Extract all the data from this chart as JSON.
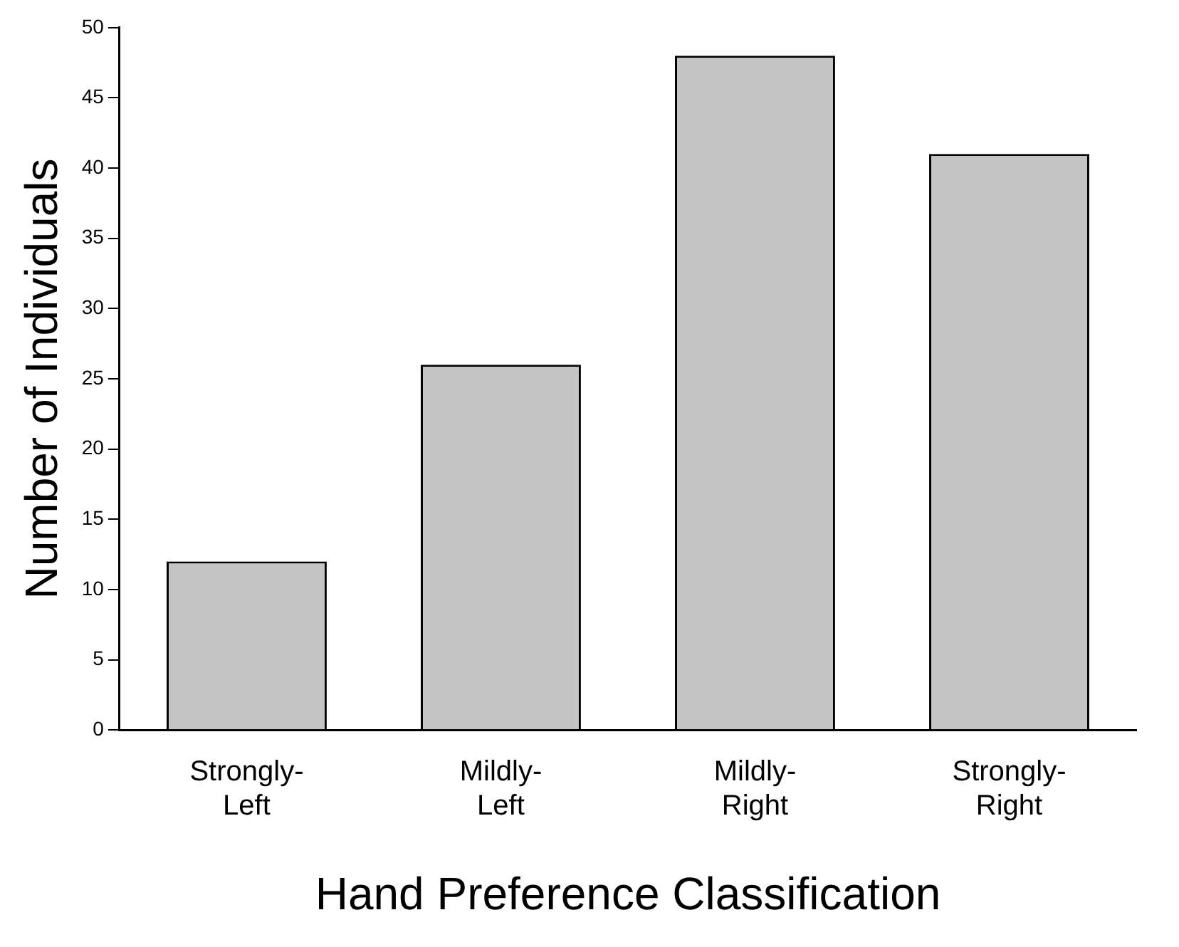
{
  "chart_data": {
    "type": "bar",
    "xlabel": "Hand Preference Classification",
    "ylabel": "Number of Individuals",
    "categories": [
      "Strongly-Left",
      "Mildly-Left",
      "Mildly-Right",
      "Strongly-Right"
    ],
    "values": [
      12,
      26,
      48,
      41
    ],
    "color": "#c4c4c4",
    "ylim": [
      0,
      50
    ],
    "yticks": [
      0,
      5,
      10,
      15,
      20,
      25,
      30,
      35,
      40,
      45,
      50
    ],
    "grid": false,
    "legend": false
  }
}
